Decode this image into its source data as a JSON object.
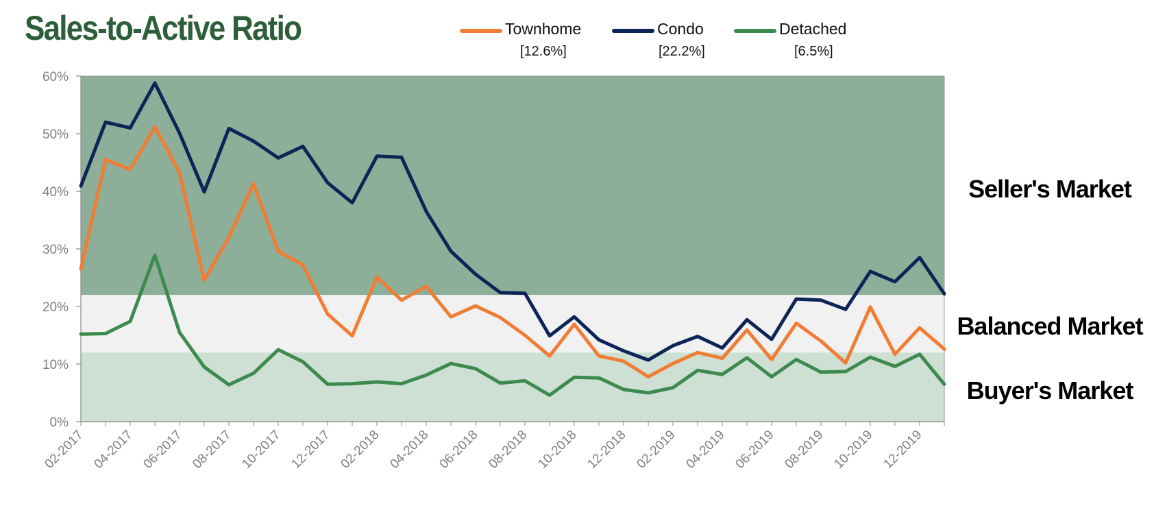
{
  "colors": {
    "title": "#2d5e3a",
    "townhome": "#f07d33",
    "condo": "#0d2456",
    "detached": "#3d8a4e",
    "seller_zone": "#8daf99",
    "balanced_zone": "#f1f1f1",
    "buyer_zone": "#cde0d3",
    "axis_text": "#7f7f7f"
  },
  "chart_data": {
    "type": "line",
    "title": "Sales-to-Active Ratio",
    "xlabel": "",
    "ylabel": "",
    "ylim": [
      0,
      60
    ],
    "y_ticks": [
      {
        "value": 0,
        "label": "0%"
      },
      {
        "value": 10,
        "label": "10%"
      },
      {
        "value": 20,
        "label": "20%"
      },
      {
        "value": 30,
        "label": "30%"
      },
      {
        "value": 40,
        "label": "40%"
      },
      {
        "value": 50,
        "label": "50%"
      },
      {
        "value": 60,
        "label": "60%"
      }
    ],
    "x": [
      "02-2017",
      "03-2017",
      "04-2017",
      "05-2017",
      "06-2017",
      "07-2017",
      "08-2017",
      "09-2017",
      "10-2017",
      "11-2017",
      "12-2017",
      "01-2018",
      "02-2018",
      "03-2018",
      "04-2018",
      "05-2018",
      "06-2018",
      "07-2018",
      "08-2018",
      "09-2018",
      "10-2018",
      "11-2018",
      "12-2018",
      "01-2019",
      "02-2019",
      "03-2019",
      "04-2019",
      "05-2019",
      "06-2019",
      "07-2019",
      "08-2019",
      "09-2019",
      "10-2019",
      "11-2019",
      "12-2019",
      "01-2020"
    ],
    "x_tick_labels": [
      "02-2017",
      "04-2017",
      "06-2017",
      "08-2017",
      "10-2017",
      "12-2017",
      "02-2018",
      "04-2018",
      "06-2018",
      "08-2018",
      "10-2018",
      "12-2018",
      "02-2019",
      "04-2019",
      "06-2019",
      "08-2019",
      "10-2019",
      "12-2019"
    ],
    "series": [
      {
        "name": "Townhome",
        "color_key": "townhome",
        "current_label": "[12.6%]",
        "values": [
          26.5,
          45.5,
          43.8,
          51.2,
          43.2,
          24.6,
          32.0,
          41.3,
          29.6,
          27.2,
          18.7,
          14.9,
          25.1,
          21.1,
          23.5,
          18.2,
          20.1,
          18.1,
          15.0,
          11.4,
          16.9,
          11.4,
          10.5,
          7.8,
          10.1,
          12.0,
          11.0,
          15.9,
          10.8,
          17.1,
          14.0,
          10.2,
          19.9,
          11.7,
          16.3,
          12.6
        ]
      },
      {
        "name": "Condo",
        "color_key": "condo",
        "current_label": "[22.2%]",
        "values": [
          40.9,
          52.0,
          51.0,
          58.8,
          50.1,
          39.9,
          50.9,
          48.7,
          45.8,
          47.8,
          41.5,
          38.0,
          46.1,
          45.9,
          36.5,
          29.6,
          25.6,
          22.4,
          22.3,
          14.9,
          18.2,
          14.2,
          12.3,
          10.7,
          13.2,
          14.8,
          12.8,
          17.7,
          14.3,
          21.3,
          21.1,
          19.5,
          26.1,
          24.3,
          28.5,
          22.2
        ]
      },
      {
        "name": "Detached",
        "color_key": "detached",
        "current_label": "[6.5%]",
        "values": [
          15.2,
          15.3,
          17.4,
          28.9,
          15.5,
          9.5,
          6.4,
          8.4,
          12.5,
          10.4,
          6.5,
          6.6,
          6.9,
          6.6,
          8.1,
          10.1,
          9.2,
          6.7,
          7.1,
          4.6,
          7.7,
          7.6,
          5.6,
          5.0,
          5.9,
          8.9,
          8.2,
          11.1,
          7.8,
          10.8,
          8.6,
          8.7,
          11.2,
          9.6,
          11.7,
          6.5
        ]
      }
    ],
    "zones": [
      {
        "label": "Seller's Market",
        "from": 22,
        "to": 60,
        "color_key": "seller_zone"
      },
      {
        "label": "Balanced Market",
        "from": 12,
        "to": 22,
        "color_key": "balanced_zone"
      },
      {
        "label": "Buyer's Market",
        "from": 0,
        "to": 12,
        "color_key": "buyer_zone"
      }
    ],
    "grid": false,
    "legend_position": "top"
  }
}
